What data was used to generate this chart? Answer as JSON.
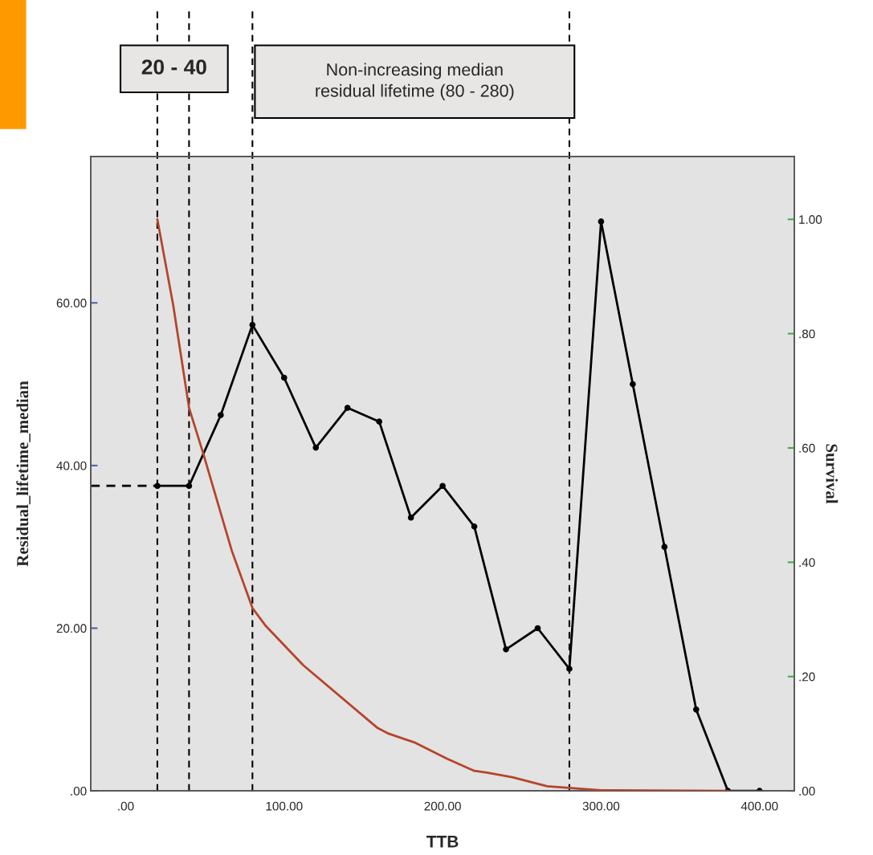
{
  "chart_data": {
    "type": "line",
    "xlabel": "TTB",
    "ylabel": "Residual_lifetime_median",
    "y2label": "Survival",
    "xlim": [
      -22,
      422
    ],
    "xticks": [
      {
        "value": 0,
        "label": ".00"
      },
      {
        "value": 100,
        "label": "100.00"
      },
      {
        "value": 200,
        "label": "200.00"
      },
      {
        "value": 300,
        "label": "300.00"
      },
      {
        "value": 400,
        "label": "400.00"
      }
    ],
    "ylim": [
      0,
      78
    ],
    "yticks": [
      {
        "value": 0,
        "label": ".00"
      },
      {
        "value": 20,
        "label": "20.00"
      },
      {
        "value": 40,
        "label": "40.00"
      },
      {
        "value": 60,
        "label": "60.00"
      }
    ],
    "y2lim": [
      0,
      1.11
    ],
    "y2ticks": [
      {
        "value": 0,
        "label": ".00"
      },
      {
        "value": 0.2,
        "label": ".20"
      },
      {
        "value": 0.4,
        "label": ".40"
      },
      {
        "value": 0.6,
        "label": ".60"
      },
      {
        "value": 0.8,
        "label": ".80"
      },
      {
        "value": 1.0,
        "label": "1.00"
      }
    ],
    "series": [
      {
        "color": "#000000",
        "marker": "circle",
        "x": [
          20,
          40,
          60,
          80,
          100,
          120,
          140,
          160,
          180,
          200,
          220,
          240,
          260,
          280,
          300,
          320,
          340,
          360,
          380,
          400
        ],
        "values": [
          37.5,
          37.5,
          46.2,
          57.3,
          50.8,
          42.2,
          47.1,
          45.4,
          33.6,
          37.5,
          32.5,
          17.4,
          20,
          15,
          70,
          50,
          30,
          10,
          0,
          0
        ]
      },
      {
        "color": "#b5452c",
        "marker": "none",
        "axis": "y2",
        "x": [
          20,
          30,
          40,
          49,
          67,
          80,
          88,
          112,
          159,
          166,
          182,
          203,
          220,
          228,
          244,
          266,
          300,
          380
        ],
        "values": [
          1.0,
          0.85,
          0.67,
          0.59,
          0.42,
          0.32,
          0.29,
          0.22,
          0.11,
          0.1,
          0.085,
          0.056,
          0.035,
          0.032,
          0.024,
          0.008,
          0.001,
          0
        ]
      },
      {
        "color": "#000000",
        "marker": "none",
        "line_style": "dashed",
        "x": [
          -22,
          20
        ],
        "values": [
          37.5,
          37.5
        ]
      }
    ],
    "ref_lines": [
      {
        "axis": "x",
        "value": 20,
        "color": "#000000",
        "line_style": "dashed"
      },
      {
        "axis": "x",
        "value": 40,
        "color": "#000000",
        "line_style": "dashed"
      },
      {
        "axis": "x",
        "value": 80,
        "color": "#000000",
        "line_style": "dashed"
      },
      {
        "axis": "x",
        "value": 280,
        "color": "#000000",
        "line_style": "dashed"
      }
    ],
    "annotations": [
      "20 - 40",
      "Non-increasing median\nresidual lifetime (80 - 280)"
    ],
    "grid": false,
    "legend": false
  }
}
